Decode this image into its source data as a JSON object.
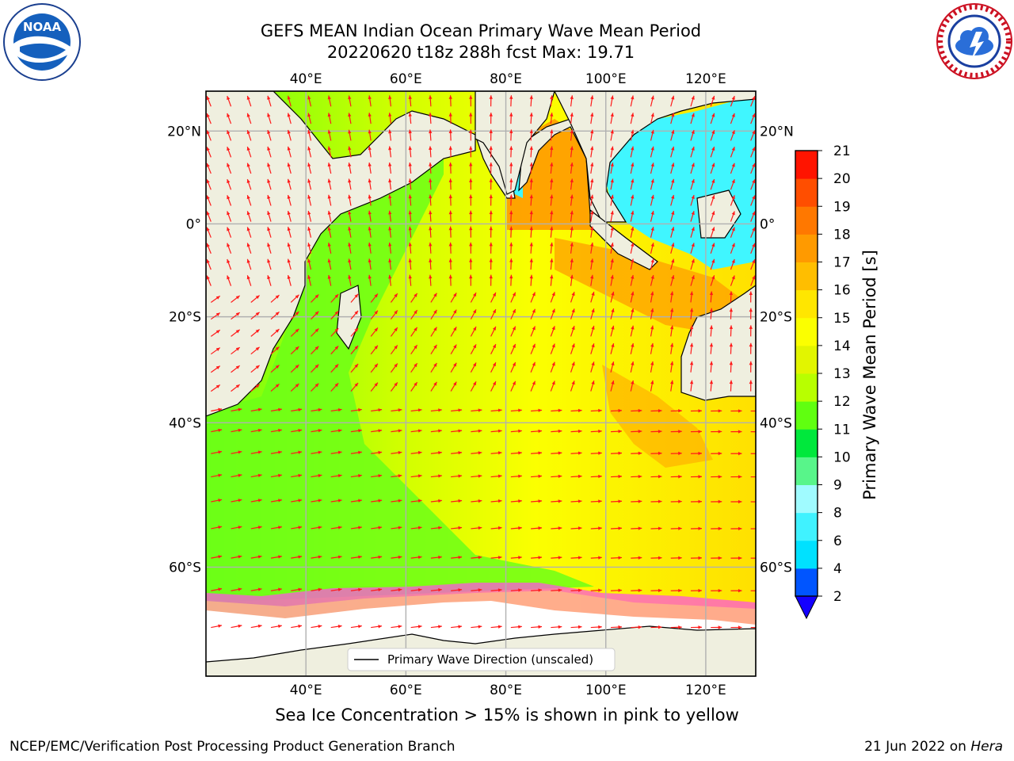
{
  "title": {
    "line1": "GEFS MEAN Indian Ocean Primary Wave Mean Period",
    "line2": "20220620 t18z 288h fcst   Max: 19.71"
  },
  "logos": {
    "left": {
      "icon": "noaa-logo",
      "text": "NOAA",
      "ring": "NATIONAL OCEANIC AND ATMOSPHERIC ADMINISTRATION · U.S. DEPARTMENT OF COMMERCE"
    },
    "right": {
      "icon": "nws-logo",
      "ring": "NATIONAL WEATHER SERVICE"
    }
  },
  "map": {
    "lon_range": [
      20,
      130
    ],
    "lat_range": [
      -70,
      28
    ],
    "lon_ticks": [
      "40°E",
      "60°E",
      "80°E",
      "100°E",
      "120°E"
    ],
    "lat_ticks": [
      "20°N",
      "0°",
      "20°S",
      "40°S",
      "60°S"
    ],
    "gridlines": true,
    "land_color": "#efefdf",
    "ice_color": "#ffffff",
    "legend": {
      "label": "Primary Wave Direction (unscaled)",
      "placement": "bottom-center"
    }
  },
  "colorbar": {
    "label": "Primary Wave Mean Period [s]",
    "tick_labels": [
      "2",
      "4",
      "6",
      "8",
      "9",
      "10",
      "11",
      "12",
      "13",
      "14",
      "15",
      "16",
      "17",
      "18",
      "19",
      "20",
      "21"
    ],
    "colors": [
      "#0055ff",
      "#00e1ff",
      "#40f2ff",
      "#a0fbff",
      "#58f58a",
      "#00e83c",
      "#60ff10",
      "#b8ff00",
      "#e2f500",
      "#fbff00",
      "#ffe600",
      "#ffbe00",
      "#ff9a00",
      "#ff7800",
      "#ff4e00",
      "#ff1400"
    ],
    "extend_color": "#1400ff"
  },
  "caption": "Sea Ice Concentration > 15% is shown in pink to yellow",
  "footer": {
    "left": "NCEP/EMC/Verification Post Processing Product Generation Branch",
    "right_prefix": "21 Jun 2022 on ",
    "right_host": "Hera"
  }
}
